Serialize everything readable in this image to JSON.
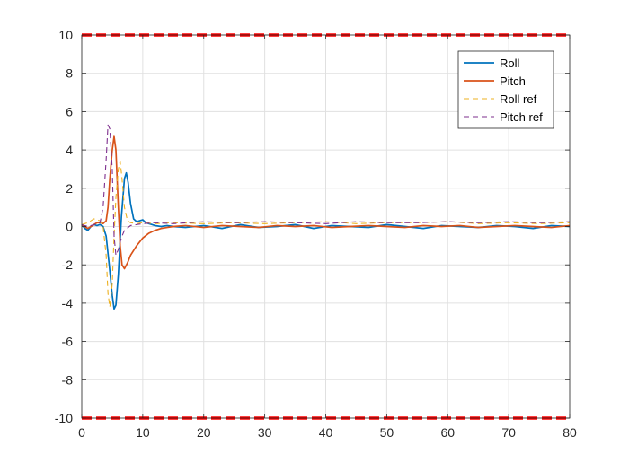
{
  "chart_data": {
    "type": "line",
    "title": "",
    "xlabel": "",
    "ylabel": "",
    "xlim": [
      0,
      80
    ],
    "ylim": [
      -10,
      10
    ],
    "xticks": [
      0,
      10,
      20,
      30,
      40,
      50,
      60,
      70,
      80
    ],
    "yticks": [
      -10,
      -8,
      -6,
      -4,
      -2,
      0,
      2,
      4,
      6,
      8,
      10
    ],
    "grid": true,
    "legend_position": "top-right",
    "limit_lines": {
      "values": [
        10,
        -10
      ],
      "color": "#ff0000",
      "style": "dashed"
    },
    "series": [
      {
        "name": "Roll",
        "color": "#0072bd",
        "style": "solid",
        "x": [
          0,
          0.5,
          1,
          1.5,
          2,
          2.5,
          3,
          3.5,
          4,
          4.5,
          5,
          5.3,
          5.6,
          6,
          6.5,
          7,
          7.3,
          7.6,
          8,
          8.5,
          9,
          9.5,
          10,
          10.5,
          11,
          11.5,
          12,
          13,
          14,
          15,
          17,
          20,
          23,
          26,
          29,
          32,
          35,
          38,
          41,
          44,
          47,
          50,
          53,
          56,
          59,
          62,
          65,
          68,
          71,
          74,
          77,
          80
        ],
        "y": [
          0.1,
          -0.1,
          -0.2,
          0.0,
          0.1,
          0.05,
          0.1,
          0.0,
          -0.5,
          -2.0,
          -3.6,
          -4.3,
          -4.1,
          -2.5,
          0.5,
          2.5,
          2.8,
          2.3,
          1.2,
          0.4,
          0.25,
          0.3,
          0.35,
          0.2,
          0.15,
          0.1,
          0.05,
          0.0,
          0.05,
          0.0,
          -0.05,
          0.05,
          -0.1,
          0.1,
          -0.05,
          0.0,
          0.1,
          -0.1,
          0.05,
          0.0,
          -0.05,
          0.1,
          0.0,
          -0.1,
          0.05,
          0.0,
          -0.05,
          0.05,
          0.0,
          -0.1,
          0.05,
          0.0
        ]
      },
      {
        "name": "Pitch",
        "color": "#d95319",
        "style": "solid",
        "x": [
          0,
          0.5,
          1,
          1.5,
          2,
          2.5,
          3,
          3.5,
          4,
          4.3,
          4.6,
          5,
          5.3,
          5.6,
          6,
          6.3,
          6.6,
          7,
          7.5,
          8,
          9,
          10,
          11,
          12,
          13,
          14,
          15,
          17,
          20,
          23,
          26,
          29,
          32,
          35,
          38,
          41,
          44,
          47,
          50,
          53,
          56,
          59,
          62,
          65,
          68,
          71,
          74,
          77,
          80
        ],
        "y": [
          0.1,
          0.0,
          -0.1,
          0.0,
          0.1,
          0.2,
          0.2,
          0.15,
          0.3,
          1.0,
          2.5,
          4.0,
          4.7,
          4.0,
          1.0,
          -1.0,
          -2.0,
          -2.2,
          -1.9,
          -1.5,
          -1.0,
          -0.6,
          -0.35,
          -0.2,
          -0.1,
          -0.05,
          0.0,
          0.05,
          -0.05,
          0.05,
          0.0,
          -0.05,
          0.05,
          0.0,
          0.05,
          -0.05,
          0.0,
          0.05,
          0.0,
          -0.05,
          0.05,
          0.0,
          0.05,
          -0.05,
          0.0,
          0.05,
          0.0,
          -0.05,
          0.05
        ]
      },
      {
        "name": "Roll ref",
        "color": "#edb120",
        "style": "dashed",
        "x": [
          0,
          1,
          2,
          3,
          3.5,
          4,
          4.3,
          4.6,
          5,
          5.3,
          5.6,
          6,
          6.3,
          6.6,
          7,
          7.5,
          8,
          9,
          10,
          12,
          15,
          20,
          25,
          30,
          35,
          40,
          45,
          50,
          55,
          60,
          65,
          70,
          75,
          80
        ],
        "y": [
          0.1,
          0.2,
          0.4,
          0.3,
          0.0,
          -1.5,
          -3.5,
          -4.2,
          -3.0,
          -0.5,
          1.5,
          3.0,
          3.4,
          2.5,
          1.0,
          0.3,
          0.2,
          0.15,
          0.2,
          0.15,
          0.2,
          0.15,
          0.2,
          0.15,
          0.2,
          0.25,
          0.15,
          0.2,
          0.2,
          0.25,
          0.15,
          0.2,
          0.15,
          0.2
        ]
      },
      {
        "name": "Pitch ref",
        "color": "#7e2f8e",
        "style": "dashed",
        "x": [
          0,
          1,
          2,
          3,
          3.5,
          4,
          4.3,
          4.6,
          5,
          5.3,
          5.6,
          6,
          6.3,
          6.6,
          7,
          8,
          9,
          10,
          12,
          15,
          20,
          25,
          30,
          35,
          40,
          45,
          50,
          55,
          60,
          65,
          70,
          75,
          80
        ],
        "y": [
          0.1,
          0.0,
          0.1,
          0.2,
          1.0,
          3.5,
          5.3,
          5.1,
          3.0,
          -0.5,
          -1.5,
          -1.2,
          -0.8,
          -0.5,
          -0.2,
          0.05,
          0.1,
          0.15,
          0.2,
          0.15,
          0.25,
          0.2,
          0.25,
          0.2,
          0.15,
          0.25,
          0.2,
          0.2,
          0.25,
          0.2,
          0.25,
          0.2,
          0.25
        ]
      }
    ]
  }
}
